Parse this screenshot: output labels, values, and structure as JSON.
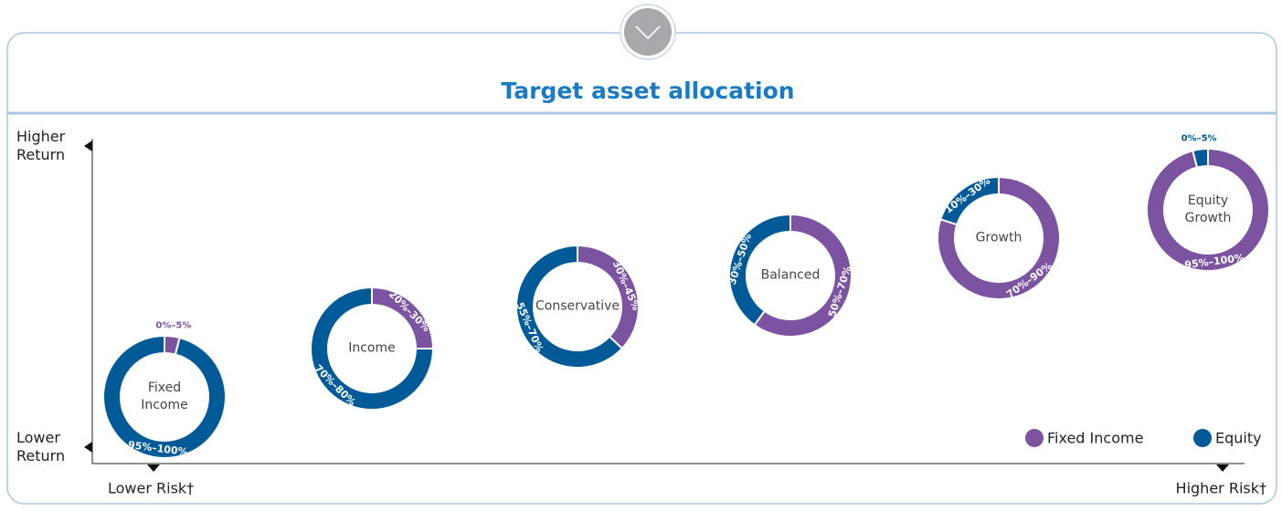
{
  "chart_data": {
    "type": "donut",
    "title": "Target asset allocation",
    "y_axis_labels": [
      "Higher Return",
      "Lower Return"
    ],
    "x_axis_labels": [
      "Lower Risk†",
      "Higher Risk†"
    ],
    "series": [
      {
        "name": "Fixed Income",
        "color": "#7b53a1"
      },
      {
        "name": "Equity",
        "color": "#005a97"
      }
    ],
    "portfolios": [
      {
        "name": "Fixed Income",
        "values": [
          4,
          96
        ],
        "value_labels": [
          "0%–5%",
          "95%–100%"
        ]
      },
      {
        "name": "Income",
        "values": [
          25,
          75
        ],
        "value_labels": [
          "20%–30%",
          "70%–80%"
        ]
      },
      {
        "name": "Conservative",
        "values": [
          37,
          63
        ],
        "value_labels": [
          "30%–45%",
          "55%–70%"
        ]
      },
      {
        "name": "Balanced",
        "values": [
          60,
          40
        ],
        "value_labels": [
          "50%–70%",
          "30%–50%"
        ]
      },
      {
        "name": "Growth",
        "values": [
          80,
          20
        ],
        "value_labels": [
          "70%–90%",
          "10%–30%"
        ]
      },
      {
        "name": "Equity Growth",
        "values": [
          96,
          4
        ],
        "value_labels": [
          "95%–100%",
          "0%–5%"
        ]
      }
    ]
  }
}
